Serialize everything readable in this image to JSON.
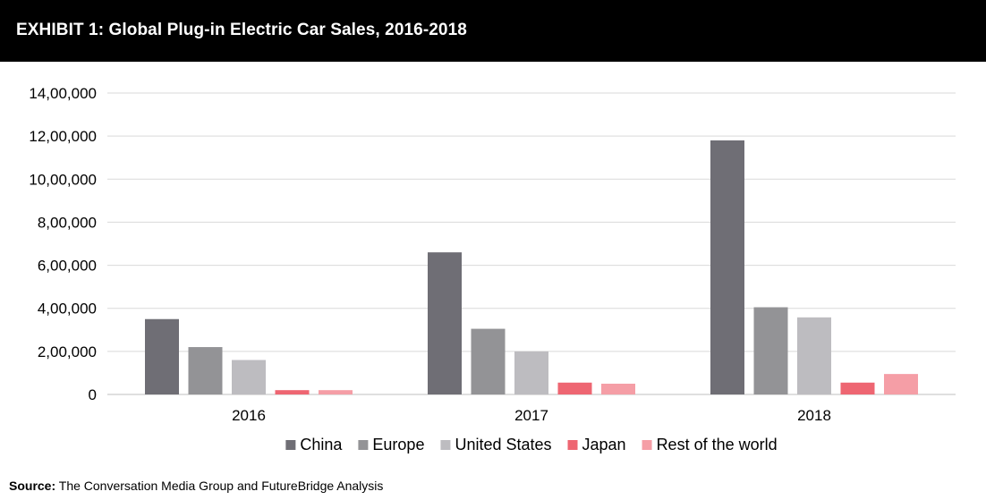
{
  "header": {
    "title": "EXHIBIT 1: Global Plug-in Electric Car Sales, 2016-2018"
  },
  "footer": {
    "source_label": "Source:",
    "source_text": "The Conversation Media Group and FutureBridge Analysis"
  },
  "chart_data": {
    "type": "bar",
    "title": "EXHIBIT 1: Global Plug-in Electric Car Sales, 2016-2018",
    "xlabel": "",
    "ylabel": "",
    "categories": [
      "2016",
      "2017",
      "2018"
    ],
    "series": [
      {
        "name": "China",
        "color": "#6f6e75",
        "values": [
          350000,
          660000,
          1180000
        ]
      },
      {
        "name": "Europe",
        "color": "#939396",
        "values": [
          220000,
          305000,
          405000
        ]
      },
      {
        "name": "United States",
        "color": "#bdbcc0",
        "values": [
          160000,
          200000,
          358000
        ]
      },
      {
        "name": "Japan",
        "color": "#ee6672",
        "values": [
          20000,
          55000,
          55000
        ]
      },
      {
        "name": "Rest of the world",
        "color": "#f59ea6",
        "values": [
          20000,
          50000,
          95000
        ]
      }
    ],
    "ylim": [
      0,
      1400000
    ],
    "yticks": [
      0,
      200000,
      400000,
      600000,
      800000,
      1000000,
      1200000,
      1400000
    ],
    "ytick_labels": [
      "0",
      "2,00,000",
      "4,00,000",
      "6,00,000",
      "8,00,000",
      "10,00,000",
      "12,00,000",
      "14,00,000"
    ],
    "grid": true,
    "legend_position": "bottom"
  }
}
